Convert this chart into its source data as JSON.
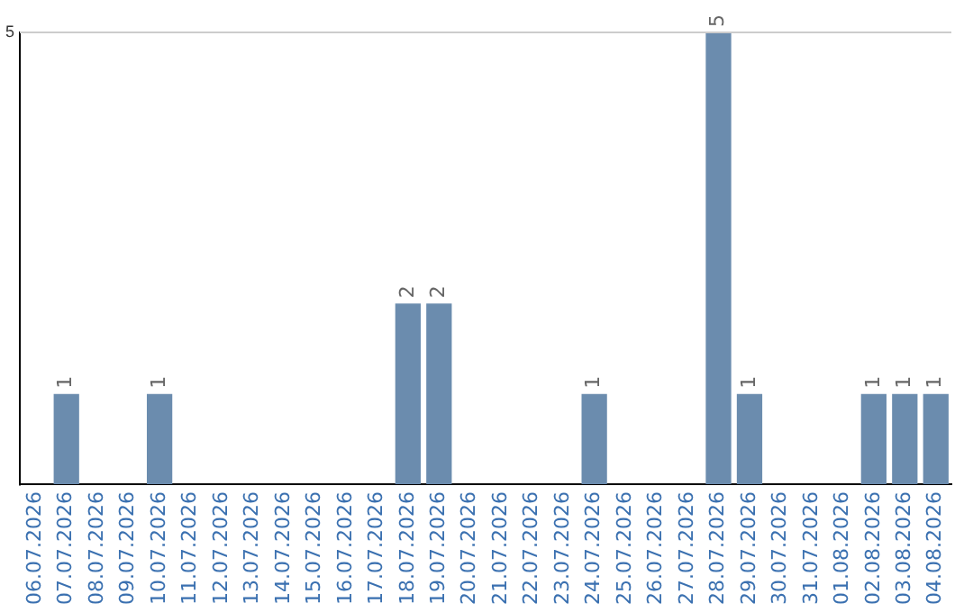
{
  "chart_data": {
    "type": "bar",
    "categories": [
      "06.07.2026",
      "07.07.2026",
      "08.07.2026",
      "09.07.2026",
      "10.07.2026",
      "11.07.2026",
      "12.07.2026",
      "13.07.2026",
      "14.07.2026",
      "15.07.2026",
      "16.07.2026",
      "17.07.2026",
      "18.07.2026",
      "19.07.2026",
      "20.07.2026",
      "21.07.2026",
      "22.07.2026",
      "23.07.2026",
      "24.07.2026",
      "25.07.2026",
      "26.07.2026",
      "27.07.2026",
      "28.07.2026",
      "29.07.2026",
      "30.07.2026",
      "31.07.2026",
      "01.08.2026",
      "02.08.2026",
      "03.08.2026",
      "04.08.2026"
    ],
    "values": [
      0,
      1,
      0,
      0,
      1,
      0,
      0,
      0,
      0,
      0,
      0,
      0,
      2,
      2,
      0,
      0,
      0,
      0,
      1,
      0,
      0,
      0,
      5,
      1,
      0,
      0,
      0,
      1,
      1,
      1
    ],
    "value_labels": [
      null,
      "1",
      null,
      null,
      "1",
      null,
      null,
      null,
      null,
      null,
      null,
      null,
      "2",
      "2",
      null,
      null,
      null,
      null,
      "1",
      null,
      null,
      null,
      "5",
      "1",
      null,
      null,
      null,
      "1",
      "1",
      "1"
    ],
    "color": "#6b8cae",
    "ylim": [
      0,
      5
    ],
    "yticks": [
      5
    ],
    "ref_lines": [
      {
        "axis": "y",
        "value": 5,
        "color": "#cccccc"
      }
    ]
  }
}
